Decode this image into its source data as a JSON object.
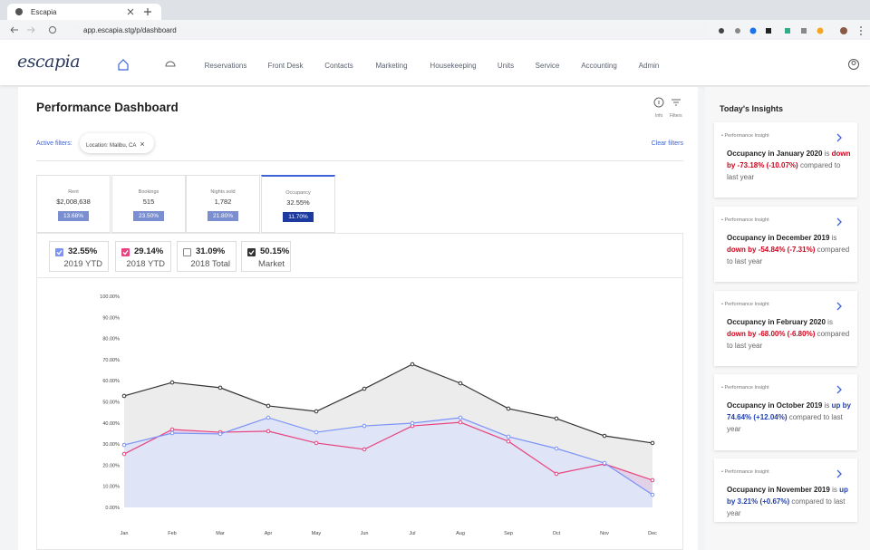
{
  "browser": {
    "tab_title": "Escapia",
    "url": "app.escapia.stg/p/dashboard"
  },
  "nav": {
    "logo": "escapia",
    "items": [
      "Reservations",
      "Front Desk",
      "Contacts",
      "Marketing",
      "Housekeeping",
      "Units",
      "Service",
      "Accounting",
      "Admin"
    ]
  },
  "header": {
    "title": "Performance Dashboard",
    "info_label": "Info",
    "filters_label": "Filters"
  },
  "filters": {
    "label": "Active filters:",
    "chips": [
      "Location: Malibu, CA"
    ],
    "clear": "Clear filters"
  },
  "kpis": [
    {
      "label": "Rent",
      "value": "$2,008,638",
      "change": "13.68%",
      "selected": false
    },
    {
      "label": "Bookings",
      "value": "515",
      "change": "23.50%",
      "selected": false
    },
    {
      "label": "Nights sold",
      "value": "1,782",
      "change": "21.80%",
      "selected": false
    },
    {
      "label": "Occupancy",
      "value": "32.55%",
      "change": "11.70%",
      "selected": true
    }
  ],
  "chart_data": {
    "type": "line",
    "categories": [
      "Jan",
      "Feb",
      "Mar",
      "Apr",
      "May",
      "Jun",
      "Jul",
      "Aug",
      "Sep",
      "Oct",
      "Nov",
      "Dec"
    ],
    "ylim": [
      0,
      100
    ],
    "yticks": [
      {
        "value": 0,
        "label": "0.00%"
      },
      {
        "value": 10,
        "label": "10.00%"
      },
      {
        "value": 20,
        "label": "20.00%"
      },
      {
        "value": 30,
        "label": "30.00%"
      },
      {
        "value": 40,
        "label": "40.00%"
      },
      {
        "value": 50,
        "label": "50.00%"
      },
      {
        "value": 60,
        "label": "60.00%"
      },
      {
        "value": 70,
        "label": "70.00%"
      },
      {
        "value": 80,
        "label": "80.00%"
      },
      {
        "value": 90,
        "label": "90.00%"
      },
      {
        "value": 100,
        "label": "100.00%"
      }
    ],
    "grid": false,
    "series": [
      {
        "name": "2019 YTD",
        "summary": "32.55%",
        "checked": true,
        "color": "#7b93f7",
        "fill": "#dfe4f6",
        "values": [
          29.6,
          35.2,
          34.8,
          42.5,
          35.6,
          38.6,
          39.9,
          42.5,
          33.5,
          27.9,
          21.0,
          6.0
        ]
      },
      {
        "name": "2018 YTD",
        "summary": "29.14%",
        "checked": true,
        "color": "#e8437f",
        "fill": "#e2d2e8",
        "values": [
          25.3,
          36.9,
          35.6,
          36.1,
          30.5,
          27.5,
          38.6,
          40.3,
          31.3,
          15.9,
          20.6,
          12.9
        ]
      },
      {
        "name": "2018 Total",
        "summary": "31.09%",
        "checked": false,
        "color": "#999999"
      },
      {
        "name": "Market",
        "summary": "50.15%",
        "checked": true,
        "color": "#333333",
        "fill": "#ececec",
        "values": [
          52.8,
          59.2,
          56.7,
          48.1,
          45.5,
          56.2,
          67.8,
          58.8,
          46.8,
          42.1,
          33.9,
          30.5
        ]
      }
    ]
  },
  "insights": {
    "title": "Today's Insights",
    "items": [
      {
        "label": "Performance Insight",
        "subject": "Occupancy in January 2020",
        "verb": "is",
        "change": "down by -73.18% (-10.07%)",
        "change_color": "#d0021b",
        "tail": "compared to last year"
      },
      {
        "label": "Performance Insight",
        "subject": "Occupancy in December 2019",
        "verb": "is",
        "change": "down by -54.84% (-7.31%)",
        "change_color": "#d0021b",
        "tail": "compared to last year"
      },
      {
        "label": "Performance Insight",
        "subject": "Occupancy in February 2020",
        "verb": "is",
        "change": "down by -68.00% (-6.80%)",
        "change_color": "#d0021b",
        "tail": "compared to last year"
      },
      {
        "label": "Performance Insight",
        "subject": "Occupancy in October 2019",
        "verb": "is",
        "change": "up by 74.64% (+12.04%)",
        "change_color": "#1f3fb0",
        "tail": "compared to last year"
      },
      {
        "label": "Performance Insight",
        "subject": "Occupancy in November 2019",
        "verb": "is",
        "change": "up by 3.21% (+0.67%)",
        "change_color": "#1f3fb0",
        "tail": "compared to last year"
      }
    ]
  }
}
